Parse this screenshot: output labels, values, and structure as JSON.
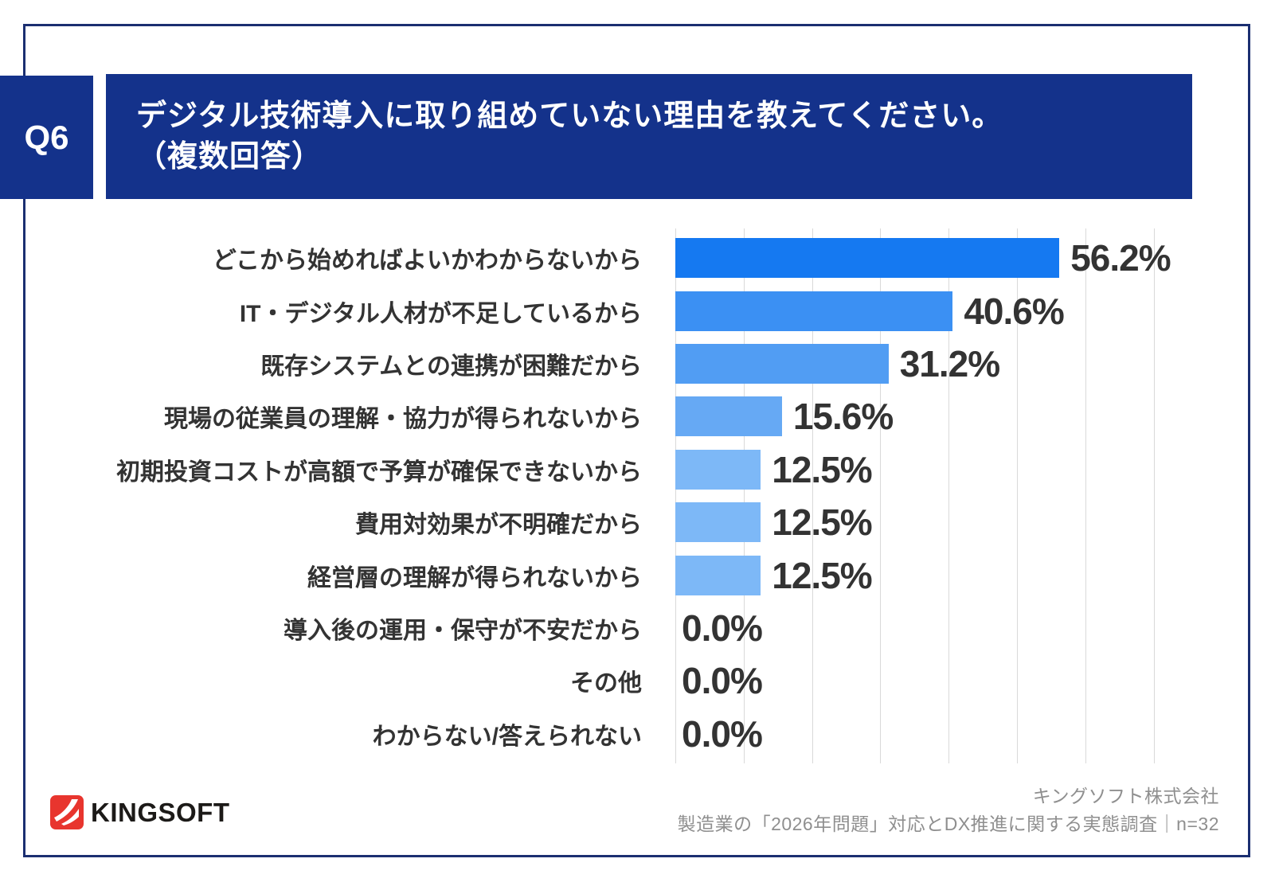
{
  "header": {
    "q_label": "Q6",
    "title_line1": "デジタル技術導入に取り組めていない理由を教えてください。",
    "title_line2": "（複数回答）"
  },
  "chart_data": {
    "type": "bar",
    "orientation": "horizontal",
    "title": "デジタル技術導入に取り組めていない理由を教えてください。（複数回答）",
    "categories": [
      "どこから始めればよいかわからないから",
      "IT・デジタル人材が不足しているから",
      "既存システムとの連携が困難だから",
      "現場の従業員の理解・協力が得られないから",
      "初期投資コストが高額で予算が確保できないから",
      "費用対効果が不明確だから",
      "経営層の理解が得られないから",
      "導入後の運用・保守が不安だから",
      "その他",
      "わからない/答えられない"
    ],
    "values": [
      56.2,
      40.6,
      31.2,
      15.6,
      12.5,
      12.5,
      12.5,
      0.0,
      0.0,
      0.0
    ],
    "value_labels": [
      "56.2%",
      "40.6%",
      "31.2%",
      "15.6%",
      "12.5%",
      "12.5%",
      "12.5%",
      "0.0%",
      "0.0%",
      "0.0%"
    ],
    "bar_colors": [
      "#1579F1",
      "#3B90F3",
      "#519DF3",
      "#66A9F4",
      "#7DB8F7",
      "#7DB8F7",
      "#7DB8F7",
      null,
      null,
      null
    ],
    "xlabel": "",
    "ylabel": "",
    "xlim": [
      0,
      70
    ],
    "gridline_interval": 10,
    "grid": true,
    "legend": false
  },
  "footer": {
    "logo_text": "KINGSOFT",
    "source_line1": "キングソフト株式会社",
    "source_line2": "製造業の「2026年問題」対応とDX推進に関する実態調査｜n=32"
  },
  "colors": {
    "banner_navy": "#14328B",
    "frame_navy": "#1B2F71",
    "text_dark": "#333333",
    "grid_gray": "#D9D9D9",
    "source_gray": "#8F8F8F",
    "logo_red": "#E8352E"
  }
}
